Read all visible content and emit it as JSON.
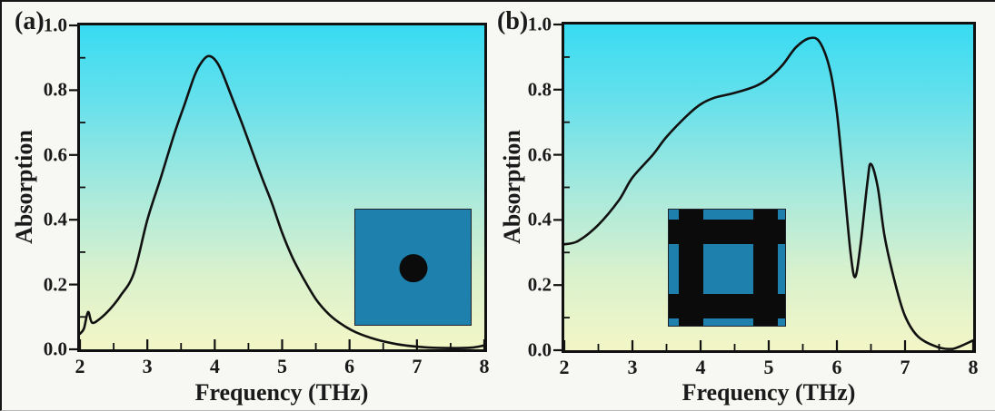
{
  "figure": {
    "type": "dual-panel absorption spectra figure"
  },
  "colors": {
    "curve": "#111111",
    "frame": "#111111",
    "text": "#1a1a1a",
    "page-bg": "#f7f7f4",
    "inset-teal": "#1e81ad",
    "inset-black": "#0b0b0b",
    "grad-top": "#38dbf2",
    "grad-upper": "#63e0ec",
    "grad-mid": "#a9e9dc",
    "grad-lower": "#d8f1cd",
    "grad-bottom": "#f3f6c6"
  },
  "chart_data": [
    {
      "type": "line",
      "panel_label": "(a)",
      "xlabel": "Frequency (THz)",
      "ylabel": "Absorption",
      "xlim": [
        2,
        8
      ],
      "ylim": [
        0.0,
        1.0
      ],
      "grid": false,
      "legend": "none",
      "x_major_ticks": [
        2,
        3,
        4,
        5,
        6,
        7,
        8
      ],
      "x_major_labels": [
        "2",
        "3",
        "4",
        "5",
        "6",
        "7",
        "8"
      ],
      "x_minor_ticks": [
        2.5,
        3.5,
        4.5,
        5.5,
        6.5,
        7.5
      ],
      "y_major_ticks": [
        0.0,
        0.2,
        0.4,
        0.6,
        0.8,
        1.0
      ],
      "y_major_labels": [
        "0.0",
        "0.2",
        "0.4",
        "0.6",
        "0.8",
        "1.0"
      ],
      "y_minor_ticks": [
        0.1,
        0.3,
        0.5,
        0.7,
        0.9
      ],
      "series": [
        {
          "name": "absorption",
          "x": [
            2.0,
            2.06,
            2.12,
            2.18,
            2.3,
            2.45,
            2.6,
            2.8,
            3.0,
            3.2,
            3.4,
            3.55,
            3.7,
            3.8,
            3.9,
            4.0,
            4.1,
            4.25,
            4.4,
            4.55,
            4.7,
            4.85,
            5.0,
            5.15,
            5.3,
            5.5,
            5.7,
            5.9,
            6.1,
            6.4,
            6.7,
            7.0,
            7.4,
            7.8,
            8.0
          ],
          "y": [
            0.048,
            0.065,
            0.115,
            0.082,
            0.095,
            0.125,
            0.165,
            0.235,
            0.4,
            0.53,
            0.665,
            0.755,
            0.845,
            0.885,
            0.905,
            0.895,
            0.86,
            0.78,
            0.7,
            0.615,
            0.53,
            0.45,
            0.36,
            0.285,
            0.225,
            0.155,
            0.107,
            0.075,
            0.052,
            0.03,
            0.016,
            0.008,
            0.004,
            0.005,
            0.012
          ]
        }
      ],
      "peak": {
        "x": 3.9,
        "y": 0.905
      },
      "inset_description": "teal square unit cell with central black circular disk"
    },
    {
      "type": "line",
      "panel_label": "(b)",
      "xlabel": "Frequency (THz)",
      "ylabel": "Absorption",
      "xlim": [
        2,
        8
      ],
      "ylim": [
        0.0,
        1.0
      ],
      "grid": false,
      "legend": "none",
      "x_major_ticks": [
        2,
        3,
        4,
        5,
        6,
        7,
        8
      ],
      "x_major_labels": [
        "2",
        "3",
        "4",
        "5",
        "6",
        "7",
        "8"
      ],
      "x_minor_ticks": [
        2.5,
        3.5,
        4.5,
        5.5,
        6.5,
        7.5
      ],
      "y_major_ticks": [
        0.0,
        0.2,
        0.4,
        0.6,
        0.8,
        1.0
      ],
      "y_major_labels": [
        "0.0",
        "0.2",
        "0.4",
        "0.6",
        "0.8",
        "1.0"
      ],
      "y_minor_ticks": [
        0.1,
        0.3,
        0.5,
        0.7,
        0.9
      ],
      "series": [
        {
          "name": "absorption",
          "x": [
            2.0,
            2.2,
            2.5,
            2.8,
            3.0,
            3.3,
            3.5,
            3.8,
            4.0,
            4.2,
            4.5,
            4.8,
            5.0,
            5.2,
            5.4,
            5.6,
            5.75,
            5.9,
            6.0,
            6.1,
            6.2,
            6.27,
            6.35,
            6.45,
            6.5,
            6.6,
            6.7,
            6.85,
            7.0,
            7.2,
            7.5,
            7.7,
            8.0
          ],
          "y": [
            0.325,
            0.335,
            0.385,
            0.46,
            0.53,
            0.6,
            0.655,
            0.72,
            0.755,
            0.775,
            0.79,
            0.81,
            0.835,
            0.875,
            0.93,
            0.958,
            0.945,
            0.86,
            0.73,
            0.52,
            0.3,
            0.225,
            0.33,
            0.52,
            0.572,
            0.5,
            0.35,
            0.21,
            0.105,
            0.04,
            0.008,
            0.004,
            0.03
          ]
        }
      ],
      "peaks": [
        {
          "x": 5.6,
          "y": 0.958
        },
        {
          "x": 6.5,
          "y": 0.572
        }
      ],
      "local_min": {
        "x": 6.27,
        "y": 0.225
      },
      "inset_description": "teal square unit cell with crossed black grid bars"
    }
  ]
}
